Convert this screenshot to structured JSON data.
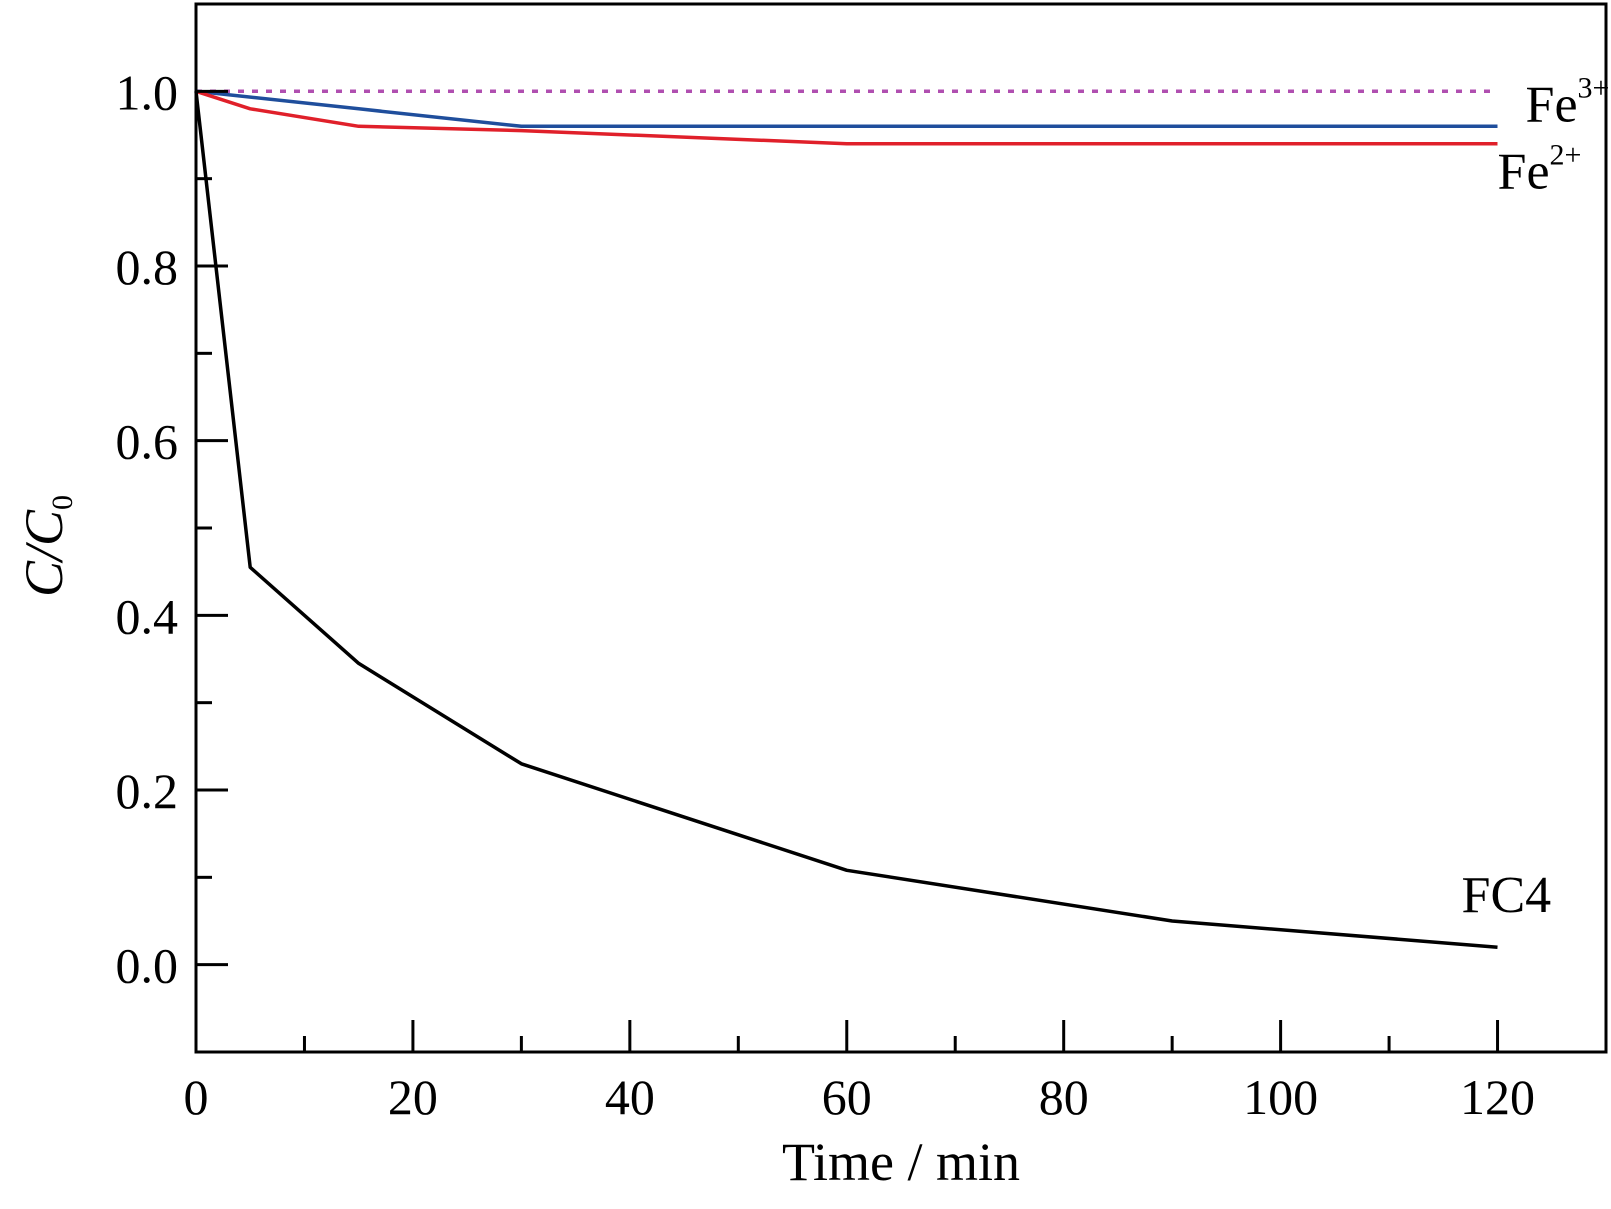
{
  "chart_data": {
    "type": "line",
    "xlabel": "Time / min",
    "ylabel": {
      "main": "C/C",
      "subscript": "0"
    },
    "xlim": [
      0,
      130
    ],
    "ylim": [
      -0.1,
      1.1
    ],
    "x_ticks": [
      0,
      20,
      40,
      60,
      80,
      100,
      120
    ],
    "x_tick_labels": [
      "0",
      "20",
      "40",
      "60",
      "80",
      "100",
      "120"
    ],
    "y_ticks": [
      0.0,
      0.2,
      0.4,
      0.6,
      0.8,
      1.0
    ],
    "y_tick_labels": [
      "0.0",
      "0.2",
      "0.4",
      "0.6",
      "0.8",
      "1.0"
    ],
    "grid": false,
    "series": [
      {
        "name": "Fe3+",
        "label": {
          "base": "Fe",
          "superscript": "3+"
        },
        "color": "#b04fb0",
        "dashed": true,
        "x": [
          0,
          120
        ],
        "y": [
          1.0,
          1.0
        ]
      },
      {
        "name": "Fe3+",
        "label": null,
        "color": "#1f4e9c",
        "dashed": false,
        "x": [
          0,
          15,
          30,
          60,
          120
        ],
        "y": [
          1.0,
          0.98,
          0.96,
          0.96,
          0.96
        ]
      },
      {
        "name": "Fe2+",
        "label": {
          "base": "Fe",
          "superscript": "2+"
        },
        "color": "#e0202a",
        "dashed": false,
        "x": [
          0,
          5,
          15,
          30,
          60,
          90,
          120
        ],
        "y": [
          1.0,
          0.98,
          0.96,
          0.955,
          0.94,
          0.94,
          0.94
        ]
      },
      {
        "name": "FC4",
        "label": {
          "base": "FC4",
          "superscript": ""
        },
        "color": "#000000",
        "dashed": false,
        "x": [
          0,
          5,
          15,
          30,
          60,
          90,
          120
        ],
        "y": [
          1.0,
          0.455,
          0.345,
          0.23,
          0.108,
          0.05,
          0.02
        ]
      }
    ]
  }
}
